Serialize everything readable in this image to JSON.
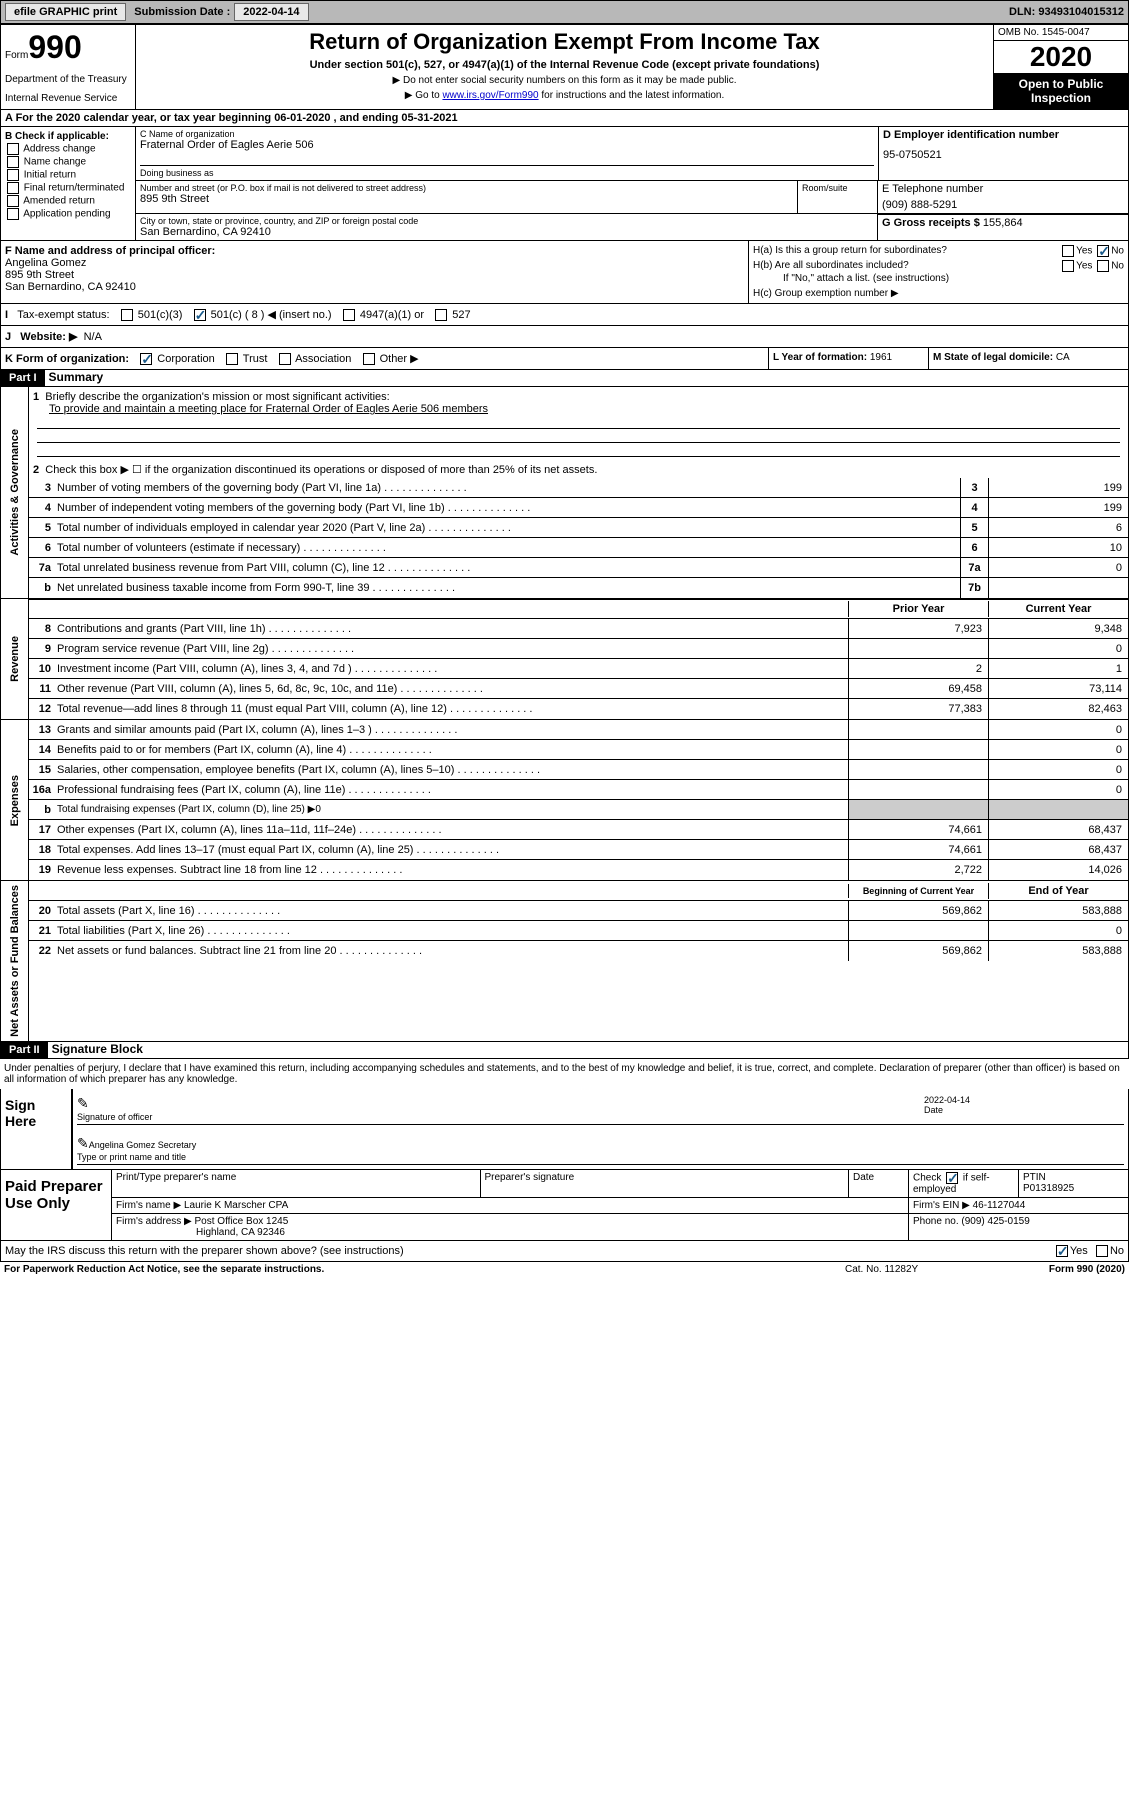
{
  "topbar": {
    "efile": "efile GRAPHIC print",
    "submission_label": "Submission Date :",
    "submission_date": "2022-04-14",
    "dln_label": "DLN:",
    "dln": "93493104015312"
  },
  "header": {
    "form_word": "Form",
    "form_num": "990",
    "dept": "Department of the Treasury",
    "irs": "Internal Revenue Service",
    "title": "Return of Organization Exempt From Income Tax",
    "subtitle": "Under section 501(c), 527, or 4947(a)(1) of the Internal Revenue Code (except private foundations)",
    "note1": "▶ Do not enter social security numbers on this form as it may be made public.",
    "note2_pre": "▶ Go to ",
    "note2_link": "www.irs.gov/Form990",
    "note2_post": " for instructions and the latest information.",
    "omb": "OMB No. 1545-0047",
    "year": "2020",
    "inspection": "Open to Public Inspection"
  },
  "row_a": "A For the 2020 calendar year, or tax year beginning 06-01-2020   , and ending 05-31-2021",
  "section_b": {
    "header": "B Check if applicable:",
    "items": [
      "Address change",
      "Name change",
      "Initial return",
      "Final return/terminated",
      "Amended return",
      "Application pending"
    ]
  },
  "section_c": {
    "name_label": "C Name of organization",
    "name": "Fraternal Order of Eagles Aerie 506",
    "dba_label": "Doing business as",
    "street_label": "Number and street (or P.O. box if mail is not delivered to street address)",
    "street": "895 9th Street",
    "room_label": "Room/suite",
    "city_label": "City or town, state or province, country, and ZIP or foreign postal code",
    "city": "San Bernardino, CA  92410"
  },
  "section_d": {
    "label": "D Employer identification number",
    "value": "95-0750521"
  },
  "section_e": {
    "label": "E Telephone number",
    "value": "(909) 888-5291"
  },
  "section_g": {
    "label": "G Gross receipts $",
    "value": "155,864"
  },
  "section_f": {
    "label": "F  Name and address of principal officer:",
    "name": "Angelina Gomez",
    "street": "895 9th Street",
    "city": "San Bernardino, CA  92410"
  },
  "section_h": {
    "ha": "H(a)  Is this a group return for subordinates?",
    "hb": "H(b)  Are all subordinates included?",
    "hb_note": "If \"No,\" attach a list. (see instructions)",
    "hc": "H(c)  Group exemption number ▶",
    "yes": "Yes",
    "no": "No"
  },
  "tax_status": {
    "i": "I",
    "label": "Tax-exempt status:",
    "opt1": "501(c)(3)",
    "opt2": "501(c) ( 8 ) ◀ (insert no.)",
    "opt3": "4947(a)(1) or",
    "opt4": "527"
  },
  "website": {
    "j": "J",
    "label": "Website: ▶",
    "value": "N/A"
  },
  "klm": {
    "k": "K Form of organization:",
    "k_opts": [
      "Corporation",
      "Trust",
      "Association",
      "Other ▶"
    ],
    "l": "L Year of formation:",
    "l_val": "1961",
    "m": "M State of legal domicile:",
    "m_val": "CA"
  },
  "part1": {
    "header": "Part I",
    "title": "Summary",
    "line1_label": "Briefly describe the organization's mission or most significant activities:",
    "line1_text": "To provide and maintain a meeting place for Fraternal Order of Eagles Aerie 506 members",
    "line2": "Check this box ▶ ☐  if the organization discontinued its operations or disposed of more than 25% of its net assets.",
    "sides": {
      "gov": "Activities & Governance",
      "rev": "Revenue",
      "exp": "Expenses",
      "net": "Net Assets or Fund Balances"
    },
    "lines": [
      {
        "num": "3",
        "text": "Number of voting members of the governing body (Part VI, line 1a)",
        "box": "3",
        "val": "199"
      },
      {
        "num": "4",
        "text": "Number of independent voting members of the governing body (Part VI, line 1b)",
        "box": "4",
        "val": "199"
      },
      {
        "num": "5",
        "text": "Total number of individuals employed in calendar year 2020 (Part V, line 2a)",
        "box": "5",
        "val": "6"
      },
      {
        "num": "6",
        "text": "Total number of volunteers (estimate if necessary)",
        "box": "6",
        "val": "10"
      },
      {
        "num": "7a",
        "text": "Total unrelated business revenue from Part VIII, column (C), line 12",
        "box": "7a",
        "val": "0"
      },
      {
        "num": "b",
        "text": "Net unrelated business taxable income from Form 990-T, line 39",
        "box": "7b",
        "val": ""
      }
    ],
    "prior_year": "Prior Year",
    "current_year": "Current Year",
    "rev_lines": [
      {
        "num": "8",
        "text": "Contributions and grants (Part VIII, line 1h)",
        "prior": "7,923",
        "curr": "9,348"
      },
      {
        "num": "9",
        "text": "Program service revenue (Part VIII, line 2g)",
        "prior": "",
        "curr": "0"
      },
      {
        "num": "10",
        "text": "Investment income (Part VIII, column (A), lines 3, 4, and 7d )",
        "prior": "2",
        "curr": "1"
      },
      {
        "num": "11",
        "text": "Other revenue (Part VIII, column (A), lines 5, 6d, 8c, 9c, 10c, and 11e)",
        "prior": "69,458",
        "curr": "73,114"
      },
      {
        "num": "12",
        "text": "Total revenue—add lines 8 through 11 (must equal Part VIII, column (A), line 12)",
        "prior": "77,383",
        "curr": "82,463"
      }
    ],
    "exp_lines": [
      {
        "num": "13",
        "text": "Grants and similar amounts paid (Part IX, column (A), lines 1–3 )",
        "prior": "",
        "curr": "0"
      },
      {
        "num": "14",
        "text": "Benefits paid to or for members (Part IX, column (A), line 4)",
        "prior": "",
        "curr": "0"
      },
      {
        "num": "15",
        "text": "Salaries, other compensation, employee benefits (Part IX, column (A), lines 5–10)",
        "prior": "",
        "curr": "0"
      },
      {
        "num": "16a",
        "text": "Professional fundraising fees (Part IX, column (A), line 11e)",
        "prior": "",
        "curr": "0"
      },
      {
        "num": "b",
        "text": "Total fundraising expenses (Part IX, column (D), line 25) ▶0",
        "prior": null,
        "curr": null
      },
      {
        "num": "17",
        "text": "Other expenses (Part IX, column (A), lines 11a–11d, 11f–24e)",
        "prior": "74,661",
        "curr": "68,437"
      },
      {
        "num": "18",
        "text": "Total expenses. Add lines 13–17 (must equal Part IX, column (A), line 25)",
        "prior": "74,661",
        "curr": "68,437"
      },
      {
        "num": "19",
        "text": "Revenue less expenses. Subtract line 18 from line 12",
        "prior": "2,722",
        "curr": "14,026"
      }
    ],
    "begin_year": "Beginning of Current Year",
    "end_year": "End of Year",
    "net_lines": [
      {
        "num": "20",
        "text": "Total assets (Part X, line 16)",
        "prior": "569,862",
        "curr": "583,888"
      },
      {
        "num": "21",
        "text": "Total liabilities (Part X, line 26)",
        "prior": "",
        "curr": "0"
      },
      {
        "num": "22",
        "text": "Net assets or fund balances. Subtract line 21 from line 20",
        "prior": "569,862",
        "curr": "583,888"
      }
    ]
  },
  "part2": {
    "header": "Part II",
    "title": "Signature Block",
    "text": "Under penalties of perjury, I declare that I have examined this return, including accompanying schedules and statements, and to the best of my knowledge and belief, it is true, correct, and complete. Declaration of preparer (other than officer) is based on all information of which preparer has any knowledge.",
    "sign_here": "Sign Here",
    "sig_officer": "Signature of officer",
    "date_label": "Date",
    "date": "2022-04-14",
    "officer_name": "Angelina Gomez Secretary",
    "type_name": "Type or print name and title"
  },
  "preparer": {
    "label": "Paid Preparer Use Only",
    "print_name_label": "Print/Type preparer's name",
    "sig_label": "Preparer's signature",
    "date_label": "Date",
    "check_label": "Check",
    "self_emp": "if self-employed",
    "ptin_label": "PTIN",
    "ptin": "P01318925",
    "firm_name_label": "Firm's name    ▶",
    "firm_name": "Laurie K Marscher CPA",
    "firm_ein_label": "Firm's EIN ▶",
    "firm_ein": "46-1127044",
    "firm_addr_label": "Firm's address ▶",
    "firm_addr": "Post Office Box 1245",
    "firm_city": "Highland, CA  92346",
    "phone_label": "Phone no.",
    "phone": "(909) 425-0159",
    "discuss": "May the IRS discuss this return with the preparer shown above? (see instructions)",
    "yes": "Yes",
    "no": "No"
  },
  "footer": {
    "left": "For Paperwork Reduction Act Notice, see the separate instructions.",
    "mid": "Cat. No. 11282Y",
    "right": "Form 990 (2020)"
  }
}
